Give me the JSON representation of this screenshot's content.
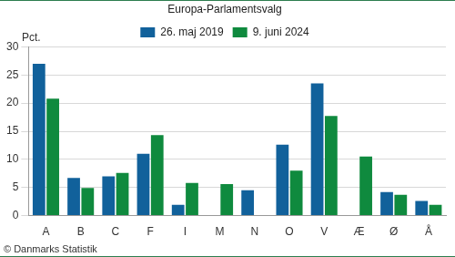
{
  "chart_data": {
    "type": "bar",
    "title": "Europa-Parlamentsvalg",
    "ylabel": "Pct.",
    "annotations": [
      "© Danmarks Statistik"
    ],
    "categories": [
      "A",
      "B",
      "C",
      "F",
      "I",
      "M",
      "N",
      "O",
      "V",
      "Æ",
      "Ø",
      "Å"
    ],
    "series": [
      {
        "name": "26. maj 2019",
        "color": "#11619b",
        "values": [
          27.0,
          6.7,
          7.0,
          11.0,
          1.9,
          null,
          4.5,
          12.6,
          23.5,
          null,
          4.2,
          2.6
        ]
      },
      {
        "name": "9. juni 2024",
        "color": "#0f8a3e",
        "values": [
          20.8,
          4.9,
          7.6,
          14.3,
          5.8,
          5.6,
          null,
          8.0,
          17.7,
          10.5,
          3.7,
          1.9
        ]
      }
    ],
    "ylim": [
      0,
      30
    ],
    "yticks": [
      0,
      5,
      10,
      15,
      20,
      25,
      30
    ],
    "grid": true,
    "legend": "top"
  }
}
